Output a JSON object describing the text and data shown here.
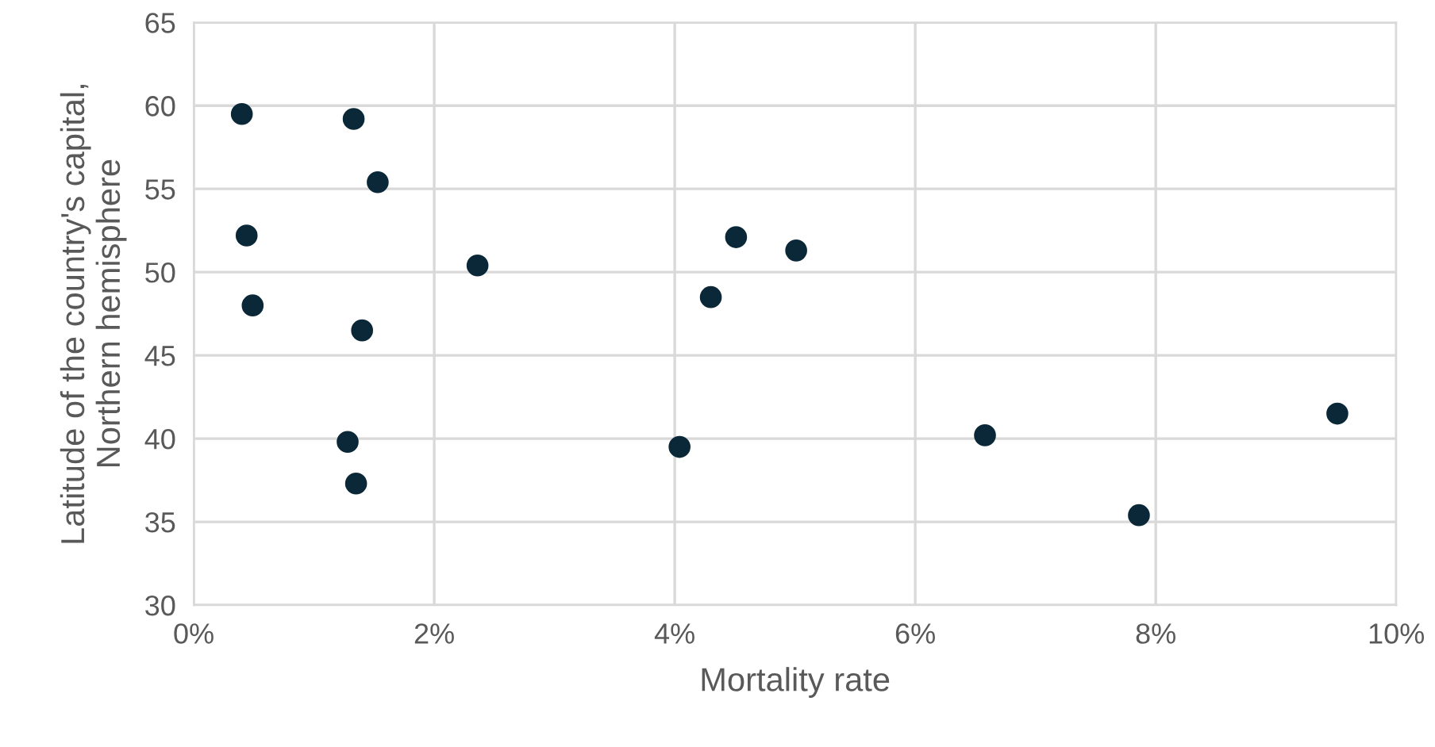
{
  "chart_data": {
    "type": "scatter",
    "xlabel": "Mortality rate",
    "ylabel": "Latitude of the country's capital,\nNorthern hemisphere",
    "x": [
      0.4,
      1.33,
      1.53,
      0.44,
      0.49,
      1.4,
      2.36,
      1.28,
      1.35,
      4.51,
      5.01,
      4.3,
      4.04,
      6.58,
      7.86,
      9.51
    ],
    "series": [
      {
        "color": "#0b2838",
        "values": [
          59.5,
          59.2,
          55.4,
          52.2,
          48.0,
          46.5,
          50.4,
          39.8,
          37.3,
          52.1,
          51.3,
          48.5,
          39.5,
          40.2,
          35.4,
          41.5
        ]
      }
    ],
    "xlim": [
      0,
      10
    ],
    "ylim": [
      30,
      65
    ],
    "xticks": [
      {
        "value": 0,
        "label": "0%"
      },
      {
        "value": 2,
        "label": "2%"
      },
      {
        "value": 4,
        "label": "4%"
      },
      {
        "value": 6,
        "label": "6%"
      },
      {
        "value": 8,
        "label": "8%"
      },
      {
        "value": 10,
        "label": "10%"
      }
    ],
    "yticks": [
      30,
      35,
      40,
      45,
      50,
      55,
      60,
      65
    ],
    "grid": true,
    "marker": "circle",
    "legend": false
  }
}
